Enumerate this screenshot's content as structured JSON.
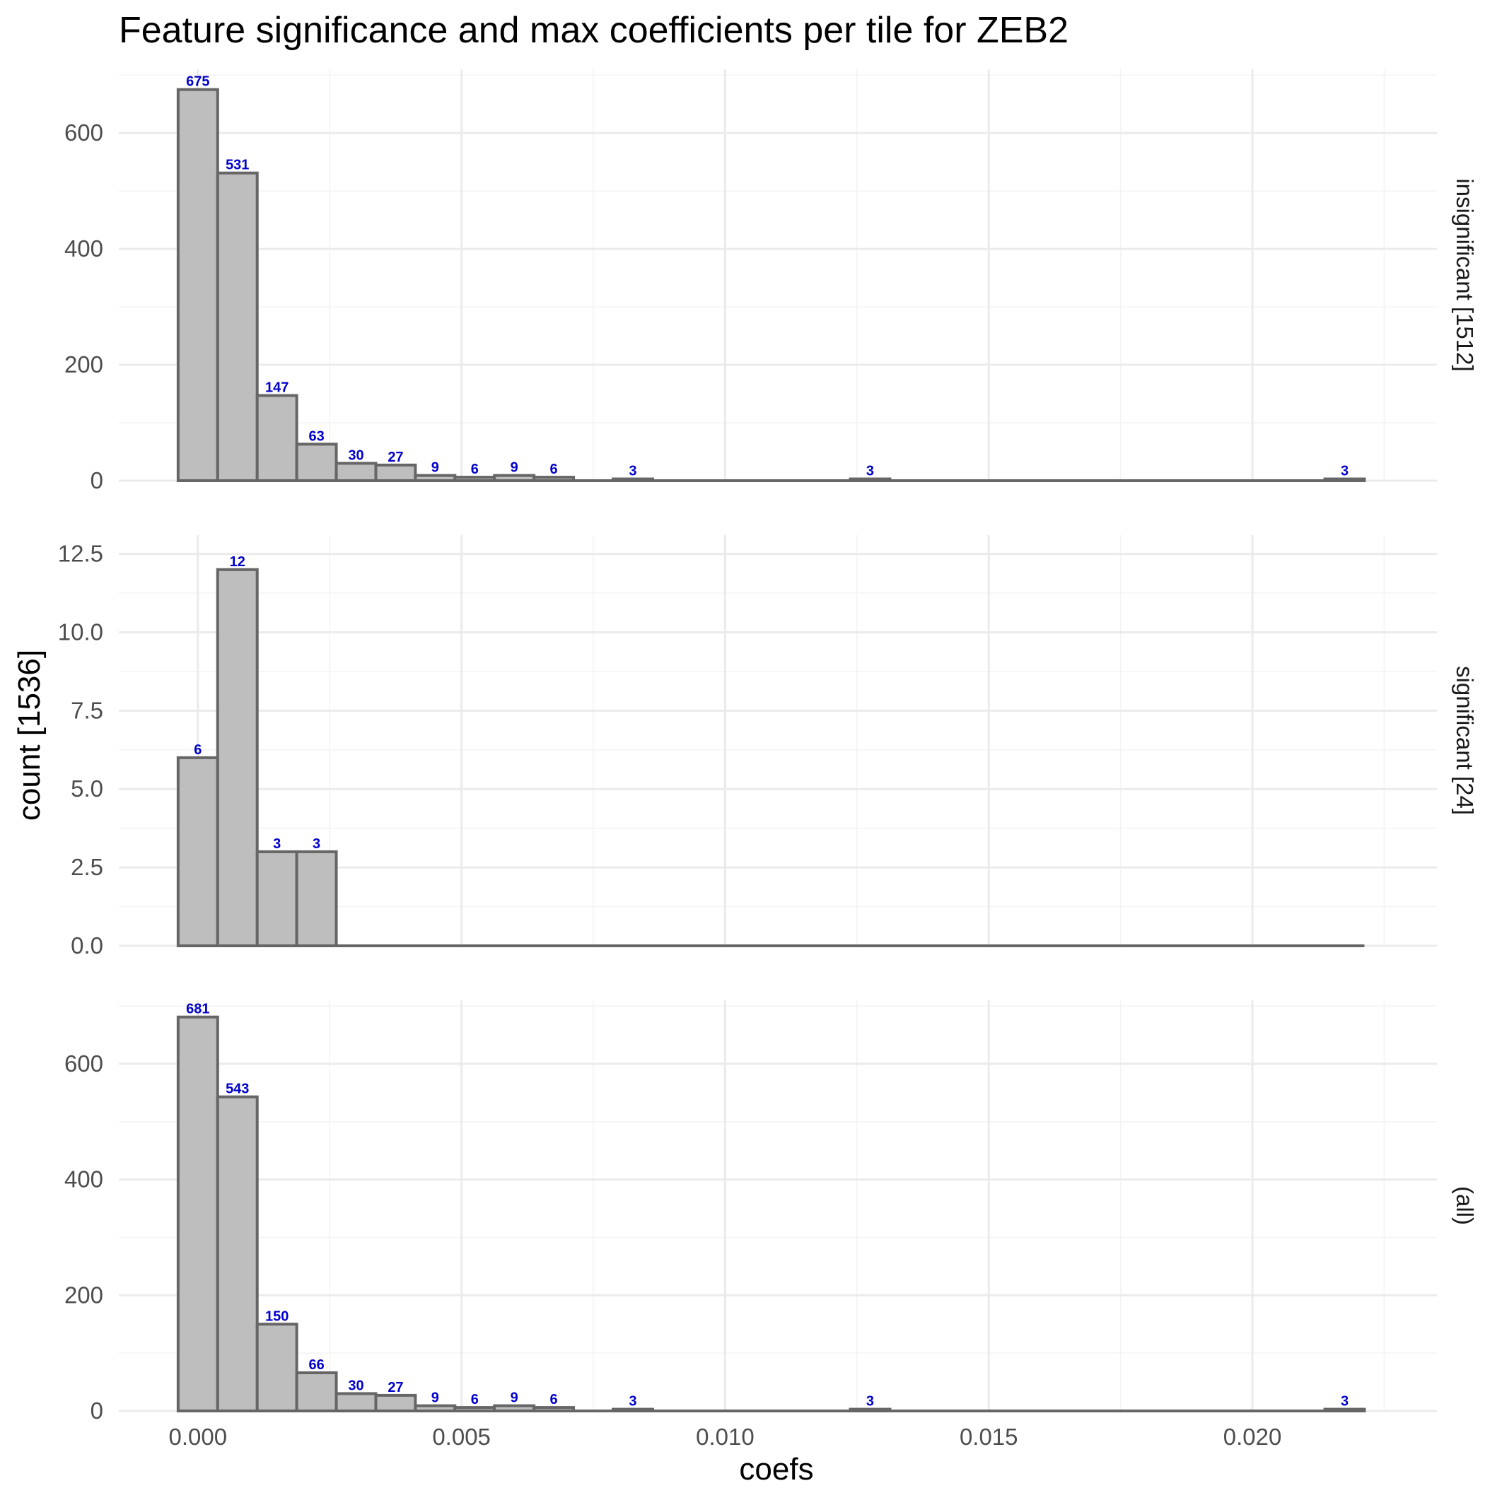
{
  "chart_data": {
    "type": "bar",
    "title": "Feature significance and max coefficients per tile for ZEB2",
    "xlabel": "coefs",
    "ylabel": "count [1536]",
    "x_ticks": [
      "0.000",
      "0.005",
      "0.010",
      "0.015",
      "0.020"
    ],
    "x_tick_values": [
      0.0,
      0.005,
      0.01,
      0.015,
      0.02
    ],
    "xlim": [
      -0.0015,
      0.0235
    ],
    "bin_width": 0.00075,
    "bin_centers": [
      0.0,
      0.00075,
      0.0015,
      0.00225,
      0.003,
      0.00375,
      0.0045,
      0.00525,
      0.006,
      0.00675,
      0.0075,
      0.00825,
      0.009,
      0.00975,
      0.0105,
      0.01125,
      0.012,
      0.01275,
      0.0135,
      0.01425,
      0.015,
      0.01575,
      0.0165,
      0.01725,
      0.018,
      0.01875,
      0.0195,
      0.02025,
      0.021,
      0.02175
    ],
    "grid": true,
    "panels": [
      {
        "strip": "insignificant [1512]",
        "ylim": [
          0,
          710
        ],
        "y_ticks": [
          "0",
          "200",
          "400",
          "600"
        ],
        "y_tick_values": [
          0,
          200,
          400,
          600
        ],
        "values": [
          675,
          531,
          147,
          63,
          30,
          27,
          9,
          6,
          9,
          6,
          0,
          3,
          0,
          0,
          0,
          0,
          0,
          3,
          0,
          0,
          0,
          0,
          0,
          0,
          0,
          0,
          0,
          0,
          0,
          3
        ]
      },
      {
        "strip": "significant [24]",
        "ylim": [
          0,
          13.1
        ],
        "y_ticks": [
          "0.0",
          "2.5",
          "5.0",
          "7.5",
          "10.0",
          "12.5"
        ],
        "y_tick_values": [
          0,
          2.5,
          5,
          7.5,
          10,
          12.5
        ],
        "values": [
          6,
          12,
          3,
          3,
          0,
          0,
          0,
          0,
          0,
          0,
          0,
          0,
          0,
          0,
          0,
          0,
          0,
          0,
          0,
          0,
          0,
          0,
          0,
          0,
          0,
          0,
          0,
          0,
          0,
          0
        ]
      },
      {
        "strip": "(all)",
        "ylim": [
          0,
          710
        ],
        "y_ticks": [
          "0",
          "200",
          "400",
          "600"
        ],
        "y_tick_values": [
          0,
          200,
          400,
          600
        ],
        "values": [
          681,
          543,
          150,
          66,
          30,
          27,
          9,
          6,
          9,
          6,
          0,
          3,
          0,
          0,
          0,
          0,
          0,
          3,
          0,
          0,
          0,
          0,
          0,
          0,
          0,
          0,
          0,
          0,
          0,
          3
        ]
      }
    ]
  }
}
